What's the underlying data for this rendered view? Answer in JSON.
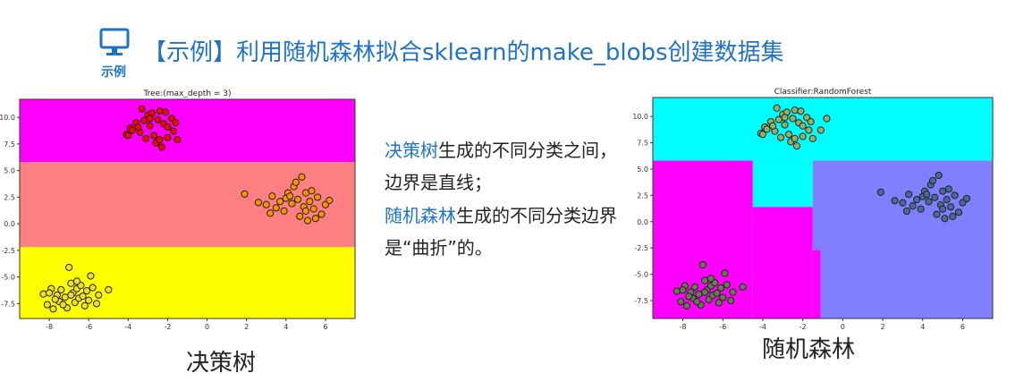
{
  "header": {
    "icon_name": "monitor-icon",
    "icon_label": "示例",
    "title": "【示例】利用随机森林拟合sklearn的make_blobs创建数据集"
  },
  "description": {
    "p1_highlight": "决策树",
    "p1_rest": "生成的不同分类之间，边界是直线；",
    "p2_highlight": "随机森林",
    "p2_rest": "生成的不同分类边界是“曲折”的。"
  },
  "captions": {
    "tree": "决策树",
    "forest": "随机森林"
  },
  "chart_data": [
    {
      "type": "scatter",
      "title": "Tree:(max_depth = 3)",
      "xlabel": "",
      "ylabel": "",
      "xlim": [
        -9.5,
        7.5
      ],
      "ylim": [
        -8.9,
        11.7
      ],
      "x_ticks": [
        -8,
        -6,
        -4,
        -2,
        0,
        2,
        4,
        6
      ],
      "y_ticks": [
        -7.5,
        -5.0,
        -2.5,
        0.0,
        2.5,
        5.0,
        7.5,
        10.0
      ],
      "grid": false,
      "regions": [
        {
          "x": [
            -9.5,
            7.5
          ],
          "y": [
            5.8,
            11.7
          ],
          "color": "#ff00ff"
        },
        {
          "x": [
            -9.5,
            7.5
          ],
          "y": [
            -2.2,
            5.8
          ],
          "color": "#ff8080"
        },
        {
          "x": [
            -9.5,
            7.5
          ],
          "y": [
            -8.9,
            -2.2
          ],
          "color": "#ffff00"
        }
      ],
      "series": [
        {
          "color": "#ff0000",
          "points": [
            [
              -4.1,
              8.4
            ],
            [
              -3.9,
              9.0
            ],
            [
              -3.6,
              9.5
            ],
            [
              -3.4,
              8.6
            ],
            [
              -3.2,
              9.7
            ],
            [
              -3.0,
              10.2
            ],
            [
              -2.9,
              9.2
            ],
            [
              -2.7,
              8.3
            ],
            [
              -2.5,
              9.8
            ],
            [
              -2.4,
              10.6
            ],
            [
              -2.2,
              9.4
            ],
            [
              -2.0,
              8.1
            ],
            [
              -1.8,
              9.9
            ],
            [
              -1.7,
              8.7
            ],
            [
              -3.3,
              10.8
            ],
            [
              -2.8,
              10.4
            ],
            [
              -2.6,
              7.6
            ],
            [
              -2.3,
              7.2
            ],
            [
              -1.6,
              9.5
            ],
            [
              -3.8,
              8.8
            ],
            [
              -4.0,
              8.3
            ],
            [
              -2.1,
              10.5
            ],
            [
              -1.5,
              7.9
            ],
            [
              -3.1,
              8.0
            ],
            [
              -2.9,
              9.9
            ],
            [
              -3.5,
              9.1
            ],
            [
              -2.0,
              9.1
            ],
            [
              -2.4,
              7.9
            ]
          ]
        },
        {
          "color": "#ff9000",
          "points": [
            [
              1.9,
              2.8
            ],
            [
              2.6,
              2.0
            ],
            [
              3.0,
              1.8
            ],
            [
              3.3,
              2.6
            ],
            [
              3.5,
              1.5
            ],
            [
              3.7,
              2.1
            ],
            [
              3.9,
              1.2
            ],
            [
              4.1,
              2.9
            ],
            [
              4.3,
              1.9
            ],
            [
              4.4,
              3.5
            ],
            [
              4.6,
              2.3
            ],
            [
              4.7,
              0.7
            ],
            [
              4.8,
              4.4
            ],
            [
              4.9,
              1.6
            ],
            [
              5.0,
              2.9
            ],
            [
              5.1,
              0.3
            ],
            [
              5.2,
              2.1
            ],
            [
              5.3,
              3.1
            ],
            [
              5.4,
              1.4
            ],
            [
              5.6,
              2.5
            ],
            [
              5.8,
              0.9
            ],
            [
              6.0,
              1.8
            ],
            [
              6.2,
              2.2
            ],
            [
              4.0,
              2.4
            ],
            [
              4.5,
              3.9
            ],
            [
              5.5,
              0.5
            ],
            [
              3.2,
              1.0
            ],
            [
              4.2,
              2.6
            ],
            [
              5.0,
              1.2
            ]
          ]
        },
        {
          "color": "#f0e020",
          "points": [
            [
              -8.3,
              -6.6
            ],
            [
              -8.1,
              -7.6
            ],
            [
              -7.9,
              -6.1
            ],
            [
              -7.8,
              -8.0
            ],
            [
              -7.6,
              -6.7
            ],
            [
              -7.5,
              -7.3
            ],
            [
              -7.4,
              -6.2
            ],
            [
              -7.2,
              -6.9
            ],
            [
              -7.1,
              -7.9
            ],
            [
              -7.0,
              -4.1
            ],
            [
              -6.9,
              -5.6
            ],
            [
              -6.8,
              -6.5
            ],
            [
              -6.7,
              -7.4
            ],
            [
              -6.6,
              -6.1
            ],
            [
              -6.5,
              -7.0
            ],
            [
              -6.4,
              -5.8
            ],
            [
              -6.3,
              -6.8
            ],
            [
              -6.2,
              -7.7
            ],
            [
              -6.1,
              -6.3
            ],
            [
              -6.0,
              -7.2
            ],
            [
              -5.9,
              -4.9
            ],
            [
              -5.8,
              -6.0
            ],
            [
              -5.6,
              -7.5
            ],
            [
              -5.5,
              -6.7
            ],
            [
              -5.0,
              -6.2
            ],
            [
              -7.3,
              -7.6
            ],
            [
              -6.9,
              -6.7
            ],
            [
              -7.7,
              -7.1
            ],
            [
              -6.6,
              -5.4
            ],
            [
              -8.0,
              -6.5
            ]
          ]
        }
      ]
    },
    {
      "type": "scatter",
      "title": "Classifier:RandomForest",
      "xlabel": "",
      "ylabel": "",
      "xlim": [
        -9.5,
        7.5
      ],
      "ylim": [
        -9.2,
        11.8
      ],
      "x_ticks": [
        -8,
        -6,
        -4,
        -2,
        0,
        2,
        4,
        6
      ],
      "y_ticks": [
        -7.5,
        -5.0,
        -2.5,
        0.0,
        2.5,
        5.0,
        7.5,
        10.0
      ],
      "grid": false,
      "regions": [
        {
          "x": [
            -9.5,
            7.5
          ],
          "y": [
            5.8,
            11.8
          ],
          "color": "#00ffff"
        },
        {
          "x": [
            -4.5,
            -1.5
          ],
          "y": [
            1.4,
            5.8
          ],
          "color": "#00ffff"
        },
        {
          "x": [
            -9.5,
            -4.5
          ],
          "y": [
            -9.2,
            5.8
          ],
          "color": "#ff00ff"
        },
        {
          "x": [
            -4.5,
            -1.5
          ],
          "y": [
            -9.2,
            1.4
          ],
          "color": "#ff00ff"
        },
        {
          "x": [
            -1.5,
            -1.1
          ],
          "y": [
            -9.2,
            -2.7
          ],
          "color": "#ff00ff"
        },
        {
          "x": [
            -1.5,
            7.5
          ],
          "y": [
            -2.7,
            5.8
          ],
          "color": "#8080ff"
        },
        {
          "x": [
            -1.1,
            7.5
          ],
          "y": [
            -9.2,
            -2.7
          ],
          "color": "#8080ff"
        }
      ],
      "series": [
        {
          "color": "#8fb368",
          "points": [
            [
              -4.1,
              8.4
            ],
            [
              -3.9,
              9.0
            ],
            [
              -3.6,
              9.5
            ],
            [
              -3.4,
              8.6
            ],
            [
              -3.2,
              9.7
            ],
            [
              -3.0,
              10.2
            ],
            [
              -2.9,
              9.2
            ],
            [
              -2.7,
              8.3
            ],
            [
              -2.5,
              9.8
            ],
            [
              -2.4,
              10.6
            ],
            [
              -2.2,
              9.4
            ],
            [
              -2.0,
              8.1
            ],
            [
              -1.8,
              9.9
            ],
            [
              -1.7,
              8.7
            ],
            [
              -3.3,
              10.8
            ],
            [
              -2.8,
              10.4
            ],
            [
              -2.6,
              7.6
            ],
            [
              -2.3,
              7.2
            ],
            [
              -1.6,
              9.5
            ],
            [
              -3.8,
              8.8
            ],
            [
              -4.0,
              8.3
            ],
            [
              -2.1,
              10.5
            ],
            [
              -1.5,
              7.9
            ],
            [
              -3.1,
              8.0
            ],
            [
              -2.9,
              9.9
            ],
            [
              -3.5,
              9.1
            ],
            [
              -2.0,
              9.1
            ],
            [
              -2.4,
              7.9
            ],
            [
              -0.8,
              9.8
            ],
            [
              -1.1,
              8.7
            ]
          ]
        },
        {
          "color": "#4a6a9a",
          "points": [
            [
              1.9,
              2.8
            ],
            [
              2.6,
              2.0
            ],
            [
              3.0,
              1.8
            ],
            [
              3.3,
              2.6
            ],
            [
              3.5,
              1.5
            ],
            [
              3.7,
              2.1
            ],
            [
              3.9,
              1.2
            ],
            [
              4.1,
              2.9
            ],
            [
              4.3,
              1.9
            ],
            [
              4.4,
              3.5
            ],
            [
              4.6,
              2.3
            ],
            [
              4.7,
              0.7
            ],
            [
              4.8,
              4.4
            ],
            [
              4.9,
              1.6
            ],
            [
              5.0,
              2.9
            ],
            [
              5.1,
              0.3
            ],
            [
              5.2,
              2.1
            ],
            [
              5.3,
              3.1
            ],
            [
              5.4,
              1.4
            ],
            [
              5.6,
              2.5
            ],
            [
              5.8,
              0.9
            ],
            [
              6.0,
              1.8
            ],
            [
              6.2,
              2.2
            ],
            [
              4.0,
              2.4
            ],
            [
              4.5,
              3.9
            ],
            [
              5.5,
              0.5
            ],
            [
              3.2,
              1.0
            ],
            [
              4.2,
              2.6
            ],
            [
              5.0,
              1.2
            ]
          ]
        },
        {
          "color": "#6a7a50",
          "points": [
            [
              -8.3,
              -6.6
            ],
            [
              -8.1,
              -7.6
            ],
            [
              -7.9,
              -6.1
            ],
            [
              -7.8,
              -8.0
            ],
            [
              -7.6,
              -6.7
            ],
            [
              -7.5,
              -7.3
            ],
            [
              -7.4,
              -6.2
            ],
            [
              -7.2,
              -6.9
            ],
            [
              -7.1,
              -7.9
            ],
            [
              -7.0,
              -4.1
            ],
            [
              -6.9,
              -5.6
            ],
            [
              -6.8,
              -6.5
            ],
            [
              -6.7,
              -7.4
            ],
            [
              -6.6,
              -6.1
            ],
            [
              -6.5,
              -7.0
            ],
            [
              -6.4,
              -5.8
            ],
            [
              -6.3,
              -6.8
            ],
            [
              -6.2,
              -7.7
            ],
            [
              -6.1,
              -6.3
            ],
            [
              -6.0,
              -7.2
            ],
            [
              -5.9,
              -4.9
            ],
            [
              -5.8,
              -6.0
            ],
            [
              -5.6,
              -7.5
            ],
            [
              -5.5,
              -6.7
            ],
            [
              -5.0,
              -6.2
            ],
            [
              -7.3,
              -7.6
            ],
            [
              -6.9,
              -6.7
            ],
            [
              -7.7,
              -7.1
            ],
            [
              -6.6,
              -5.4
            ],
            [
              -8.0,
              -6.5
            ]
          ]
        }
      ]
    }
  ]
}
